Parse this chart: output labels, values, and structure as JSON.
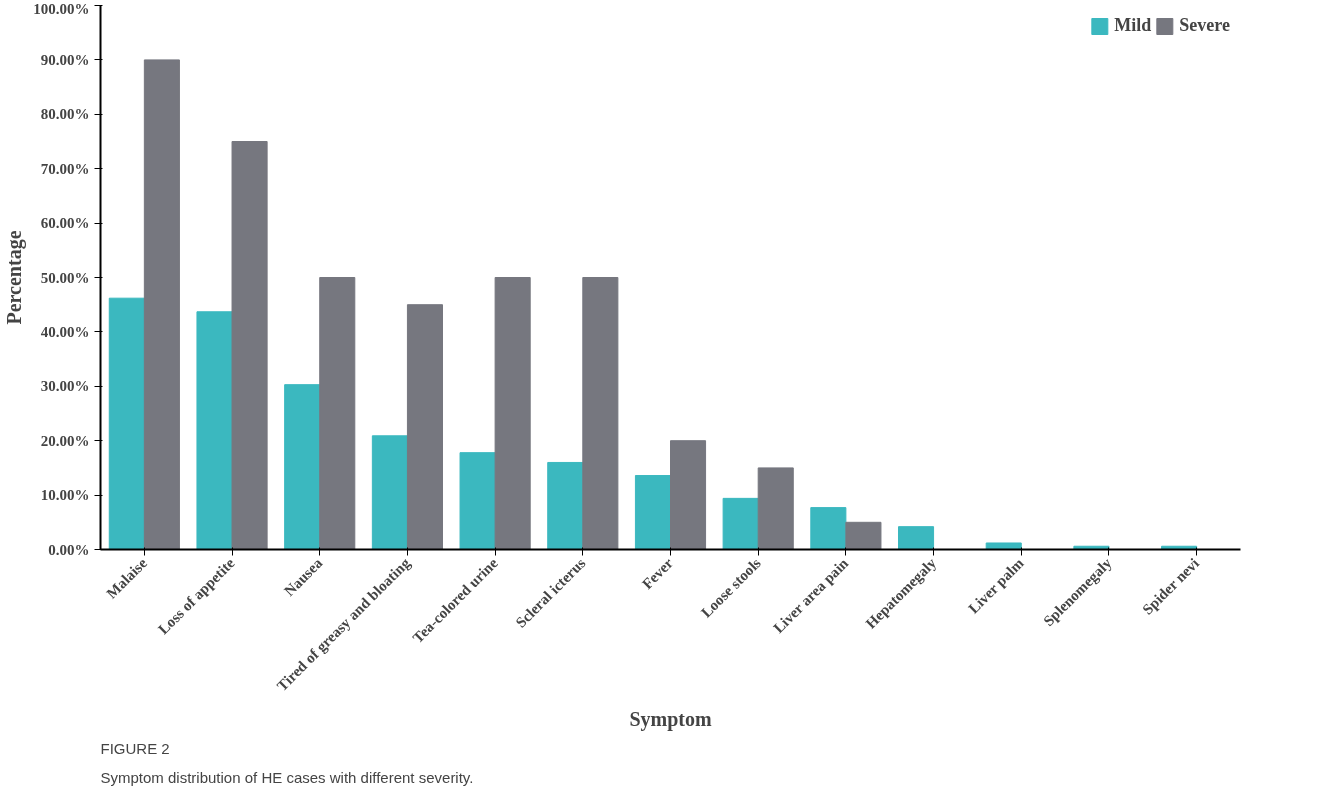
{
  "chart_data": {
    "type": "bar",
    "xlabel": "Symptom",
    "ylabel": "Percentage",
    "categories": [
      "Malaise",
      "Loss of appetite",
      "Nausea",
      "Tired of greasy and bloating",
      "Tea-colored urine",
      "Scleral icterus",
      "Fever",
      "Loose stools",
      "Liver area pain",
      "Hepatomegaly",
      "Liver palm",
      "Splenomegaly",
      "Spider nevi"
    ],
    "series": [
      {
        "name": "Mild",
        "color": "#3bb8bf",
        "values": [
          46.2,
          43.7,
          30.3,
          20.9,
          17.8,
          16.0,
          13.6,
          9.4,
          7.7,
          4.2,
          1.2,
          0.6,
          0.6
        ]
      },
      {
        "name": "Severe",
        "color": "#76777f",
        "values": [
          90,
          75,
          50,
          45,
          50,
          50,
          20,
          15,
          5,
          0,
          0,
          0,
          0
        ]
      }
    ],
    "ylim": [
      0,
      100
    ],
    "yticks": [
      {
        "value": 0,
        "label": "0.00%"
      },
      {
        "value": 10,
        "label": "10.00%"
      },
      {
        "value": 20,
        "label": "20.00%"
      },
      {
        "value": 30,
        "label": "30.00%"
      },
      {
        "value": 40,
        "label": "40.00%"
      },
      {
        "value": 50,
        "label": "50.00%"
      },
      {
        "value": 60,
        "label": "60.00%"
      },
      {
        "value": 70,
        "label": "70.00%"
      },
      {
        "value": 80,
        "label": "80.00%"
      },
      {
        "value": 90,
        "label": "90.00%"
      },
      {
        "value": 100,
        "label": "100.00%"
      }
    ],
    "grid": false,
    "legend": "top right",
    "annotations": [
      "FIGURE 2",
      "Symptom distribution of HE cases with different severity."
    ]
  }
}
